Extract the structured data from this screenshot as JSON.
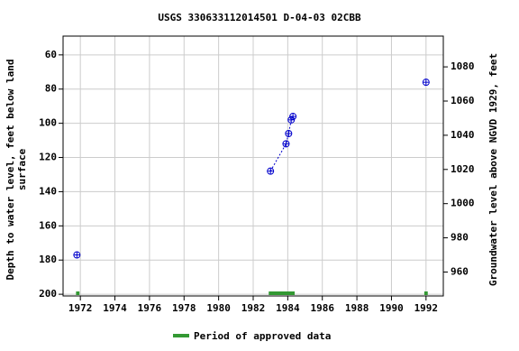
{
  "chart_data": {
    "type": "line",
    "title": "USGS 330633112014501 D-04-03 02CBB",
    "ylabel": [
      "Depth to water level, feet below land",
      "surface"
    ],
    "y2label": "Groundwater level above NGVD 1929, feet",
    "xlim": [
      1971,
      1993
    ],
    "xticks": [
      1972,
      1974,
      1976,
      1978,
      1980,
      1982,
      1984,
      1986,
      1988,
      1990,
      1992
    ],
    "ylim": [
      49,
      201
    ],
    "y_inverted": true,
    "yticks": [
      60,
      80,
      100,
      120,
      140,
      160,
      180,
      200
    ],
    "y2lim": [
      946,
      1098
    ],
    "y2ticks": [
      960,
      980,
      1000,
      1020,
      1040,
      1060,
      1080
    ],
    "grid": true,
    "series": [
      {
        "color": "#0000cc",
        "x": [
          1971.8,
          1977,
          1983.0,
          1983.9,
          1984.05,
          1984.2,
          1984.3,
          1988,
          1992.0
        ],
        "values": [
          177,
          null,
          128,
          112,
          106,
          98,
          96,
          null,
          76
        ]
      }
    ],
    "approved_periods": {
      "name": "Period of approved data",
      "color": "#339933",
      "ranges": [
        [
          1971.75,
          1971.95
        ],
        [
          1982.9,
          1984.4
        ],
        [
          1991.9,
          1992.1
        ]
      ]
    }
  }
}
